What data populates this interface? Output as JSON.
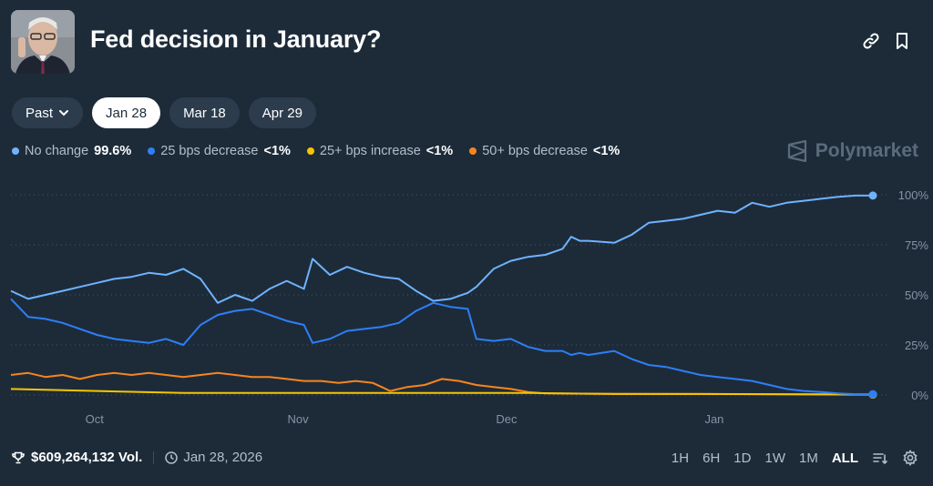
{
  "header": {
    "title": "Fed decision in January?"
  },
  "date_tabs": [
    {
      "label": "Past",
      "has_dropdown": true
    },
    {
      "label": "Jan 28",
      "active": true
    },
    {
      "label": "Mar 18"
    },
    {
      "label": "Apr 29"
    }
  ],
  "brand": {
    "name": "Polymarket"
  },
  "legend": [
    {
      "name": "No change",
      "value": "99.6%",
      "color": "#6fb3ff"
    },
    {
      "name": "25 bps decrease",
      "value": "<1%",
      "color": "#2d7ff9"
    },
    {
      "name": "25+ bps increase",
      "value": "<1%",
      "color": "#f7c500"
    },
    {
      "name": "50+ bps decrease",
      "value": "<1%",
      "color": "#f7851e"
    }
  ],
  "footer": {
    "volume": "$609,264,132 Vol.",
    "date": "Jan 28, 2026"
  },
  "ranges": [
    "1H",
    "6H",
    "1D",
    "1W",
    "1M",
    "ALL"
  ],
  "active_range": "ALL",
  "chart_data": {
    "type": "line",
    "title": "",
    "x_range": [
      0,
      100
    ],
    "ylim": [
      0,
      100
    ],
    "y_ticks": [
      "100%",
      "75%",
      "50%",
      "25%",
      "0%"
    ],
    "y_tick_values": [
      100,
      75,
      50,
      25,
      0
    ],
    "x_tick_labels": [
      "Oct",
      "Nov",
      "Dec",
      "Jan"
    ],
    "x_tick_positions": [
      9.7,
      33.3,
      57.5,
      81.6
    ],
    "series": [
      {
        "name": "No change",
        "color": "#6fb3ff",
        "x": [
          0,
          2,
          4,
          6,
          8,
          10,
          12,
          14,
          16,
          18,
          20,
          22,
          24,
          26,
          28,
          30,
          32,
          34,
          35,
          37,
          39,
          41,
          43,
          45,
          47,
          49,
          51,
          53,
          54,
          56,
          58,
          60,
          62,
          64,
          65,
          66,
          67,
          70,
          72,
          74,
          76,
          78,
          80,
          82,
          84,
          86,
          88,
          90,
          92,
          94,
          96,
          98,
          100
        ],
        "y": [
          52,
          48,
          50,
          52,
          54,
          56,
          58,
          59,
          61,
          60,
          63,
          58,
          46,
          50,
          47,
          53,
          57,
          53,
          68,
          60,
          64,
          61,
          59,
          58,
          52,
          47,
          48,
          51,
          54,
          63,
          67,
          69,
          70,
          73,
          79,
          77,
          77,
          76,
          80,
          86,
          87,
          88,
          90,
          92,
          91,
          96,
          94,
          96,
          97,
          98,
          99,
          99.6,
          99.6
        ]
      },
      {
        "name": "25 bps decrease",
        "color": "#2d7ff9",
        "x": [
          0,
          2,
          4,
          6,
          8,
          10,
          12,
          14,
          16,
          18,
          20,
          22,
          24,
          26,
          28,
          30,
          32,
          34,
          35,
          37,
          39,
          41,
          43,
          45,
          47,
          49,
          51,
          53,
          54,
          56,
          58,
          60,
          62,
          64,
          65,
          66,
          67,
          70,
          72,
          74,
          76,
          78,
          80,
          82,
          84,
          86,
          88,
          90,
          92,
          94,
          96,
          98,
          100
        ],
        "y": [
          48,
          39,
          38,
          36,
          33,
          30,
          28,
          27,
          26,
          28,
          25,
          35,
          40,
          42,
          43,
          40,
          37,
          35,
          26,
          28,
          32,
          33,
          34,
          36,
          42,
          46,
          44,
          43,
          28,
          27,
          28,
          24,
          22,
          22,
          20,
          21,
          20,
          22,
          18,
          15,
          14,
          12,
          10,
          9,
          8,
          7,
          5,
          3,
          2,
          1.5,
          0.8,
          0.4,
          0.4
        ]
      },
      {
        "name": "25+ bps increase",
        "color": "#f7c500",
        "x": [
          0,
          10,
          20,
          30,
          40,
          50,
          55,
          60,
          70,
          80,
          90,
          100
        ],
        "y": [
          3,
          2,
          1,
          1,
          1,
          1,
          1,
          1,
          0.5,
          0.5,
          0.3,
          0.2
        ]
      },
      {
        "name": "50+ bps decrease",
        "color": "#f7851e",
        "x": [
          0,
          2,
          4,
          6,
          8,
          10,
          12,
          14,
          16,
          18,
          20,
          22,
          24,
          26,
          28,
          30,
          32,
          34,
          36,
          38,
          40,
          42,
          43,
          44,
          46,
          48,
          50,
          52,
          54,
          56,
          58,
          60,
          62,
          70,
          80,
          90,
          100
        ],
        "y": [
          10,
          11,
          9,
          10,
          8,
          10,
          11,
          10,
          11,
          10,
          9,
          10,
          11,
          10,
          9,
          9,
          8,
          7,
          7,
          6,
          7,
          6,
          4,
          2,
          4,
          5,
          8,
          7,
          5,
          4,
          3,
          1.5,
          0.8,
          0.6,
          0.5,
          0.4,
          0.3
        ]
      }
    ]
  }
}
